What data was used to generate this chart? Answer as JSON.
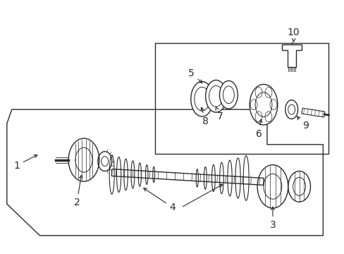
{
  "background_color": "#ffffff",
  "line_color": "#2a2a2a",
  "figure_width": 4.89,
  "figure_height": 3.6,
  "dpi": 100,
  "font_size": 10
}
